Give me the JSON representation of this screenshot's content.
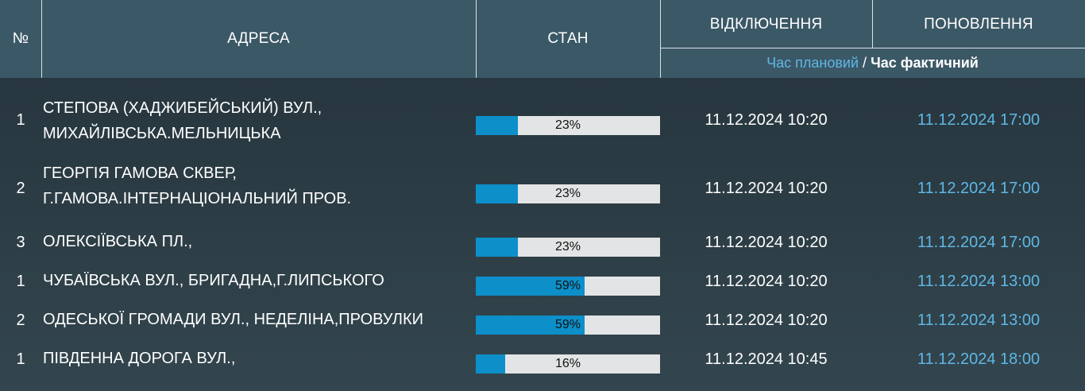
{
  "header": {
    "num": "№",
    "address": "АДРЕСА",
    "state": "СТАН",
    "outage": "ВІДКЛЮЧЕННЯ",
    "update": "ПОНОВЛЕННЯ",
    "time_planned": "Час плановий",
    "slash": "/",
    "time_actual": "Час фактичний"
  },
  "colors": {
    "header_bg": "#3b5866",
    "bar_fill": "#0d8fc9",
    "bar_bg": "#e3e4e5",
    "accent_text": "#5fb7e6"
  },
  "rows": [
    {
      "num": "1",
      "address_lines": [
        "СТЕПОВА (ХАДЖИБЕЙСЬКИЙ) ВУЛ.,",
        "МИХАЙЛІВСЬКА.МЕЛЬНИЦЬКА"
      ],
      "progress": 23,
      "progress_label": "23%",
      "outage": "11.12.2024 10:20",
      "update": "11.12.2024 17:00"
    },
    {
      "num": "2",
      "address_lines": [
        "ГЕОРГІЯ ГАМОВА СКВЕР,",
        "Г.ГАМОВА.ІНТЕРНАЦІОНАЛЬНИЙ ПРОВ."
      ],
      "progress": 23,
      "progress_label": "23%",
      "outage": "11.12.2024 10:20",
      "update": "11.12.2024 17:00"
    },
    {
      "num": "3",
      "address_lines": [
        "ОЛЕКСІЇВСЬКА ПЛ.,"
      ],
      "progress": 23,
      "progress_label": "23%",
      "outage": "11.12.2024 10:20",
      "update": "11.12.2024 17:00"
    },
    {
      "num": "1",
      "address_lines": [
        "ЧУБАЇВСЬКА ВУЛ., БРИГАДНА,Г.ЛИПСЬКОГО"
      ],
      "progress": 59,
      "progress_label": "59%",
      "outage": "11.12.2024 10:20",
      "update": "11.12.2024 13:00"
    },
    {
      "num": "2",
      "address_lines": [
        "ОДЕСЬКОЇ ГРОМАДИ ВУЛ., НЕДЕЛІНА,ПРОВУЛКИ"
      ],
      "progress": 59,
      "progress_label": "59%",
      "outage": "11.12.2024 10:20",
      "update": "11.12.2024 13:00"
    },
    {
      "num": "1",
      "address_lines": [
        "ПІВДЕННА ДОРОГА ВУЛ.,"
      ],
      "progress": 16,
      "progress_label": "16%",
      "outage": "11.12.2024 10:45",
      "update": "11.12.2024 18:00"
    }
  ]
}
